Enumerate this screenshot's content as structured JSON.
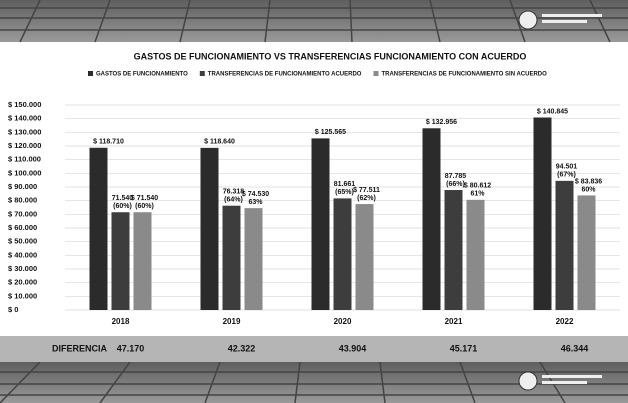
{
  "chart_data": {
    "type": "bar",
    "title": "GASTOS DE FUNCIONAMIENTO VS TRANSFERENCIAS FUNCIONAMIENTO CON ACUERDO",
    "categories": [
      "2018",
      "2019",
      "2020",
      "2021",
      "2022"
    ],
    "series": [
      {
        "name": "GASTOS DE FUNCIONAMIENTO",
        "color": "#2b2b2b",
        "values": [
          118710,
          118640,
          125565,
          132956,
          140845
        ],
        "value_labels": [
          "$ 118.710",
          "$ 118.640",
          "$ 125.565",
          "$ 132.956",
          "$ 140.845"
        ]
      },
      {
        "name": "TRANSFERENCIAS DE FUNCIONAMIENTO ACUERDO",
        "color": "#3d3d3d",
        "values": [
          71540,
          76318,
          81661,
          87785,
          94501
        ],
        "value_labels": [
          "71.540",
          "76.318",
          "81.661",
          "87.785",
          "94.501"
        ],
        "share_labels": [
          "(60%)",
          "(64%)",
          "(65%)",
          "(66%)",
          "(67%)"
        ]
      },
      {
        "name": "TRANSFERENCIAS DE FUNCIONAMIENTO SIN ACUERDO",
        "color": "#8a8a8a",
        "values": [
          71540,
          74530,
          77511,
          80612,
          83836
        ],
        "value_labels": [
          "$ 71.540",
          "$ 74.530",
          "$ 77.511",
          "$ 80.612",
          "$ 83.836"
        ],
        "share_labels": [
          "(60%)",
          "63%",
          "(62%)",
          "61%",
          "60%"
        ]
      }
    ],
    "ylim": [
      0,
      150000
    ],
    "yticks": [
      {
        "value": 0,
        "label": "$ 0"
      },
      {
        "value": 10000,
        "label": "$ 10.000"
      },
      {
        "value": 20000,
        "label": "$ 20.000"
      },
      {
        "value": 30000,
        "label": "$ 30.000"
      },
      {
        "value": 40000,
        "label": "$ 40.000"
      },
      {
        "value": 50000,
        "label": "$ 50.000"
      },
      {
        "value": 60000,
        "label": "$ 60.000"
      },
      {
        "value": 70000,
        "label": "$ 70.000"
      },
      {
        "value": 80000,
        "label": "$ 80.000"
      },
      {
        "value": 90000,
        "label": "$ 90.000"
      },
      {
        "value": 100000,
        "label": "$ 100.000"
      },
      {
        "value": 110000,
        "label": "$ 110.000"
      },
      {
        "value": 120000,
        "label": "$ 120.000"
      },
      {
        "value": 130000,
        "label": "$ 130.000"
      },
      {
        "value": 140000,
        "label": "$ 140.000"
      },
      {
        "value": 150000,
        "label": "$ 150.000"
      }
    ],
    "grid": true,
    "legend": "top",
    "difference": {
      "label": "DIFERENCIA",
      "values": [
        47170,
        42322,
        43904,
        45171,
        46344
      ],
      "value_labels": [
        "47.170",
        "42.322",
        "43.904",
        "45.171",
        "46.344"
      ]
    }
  }
}
